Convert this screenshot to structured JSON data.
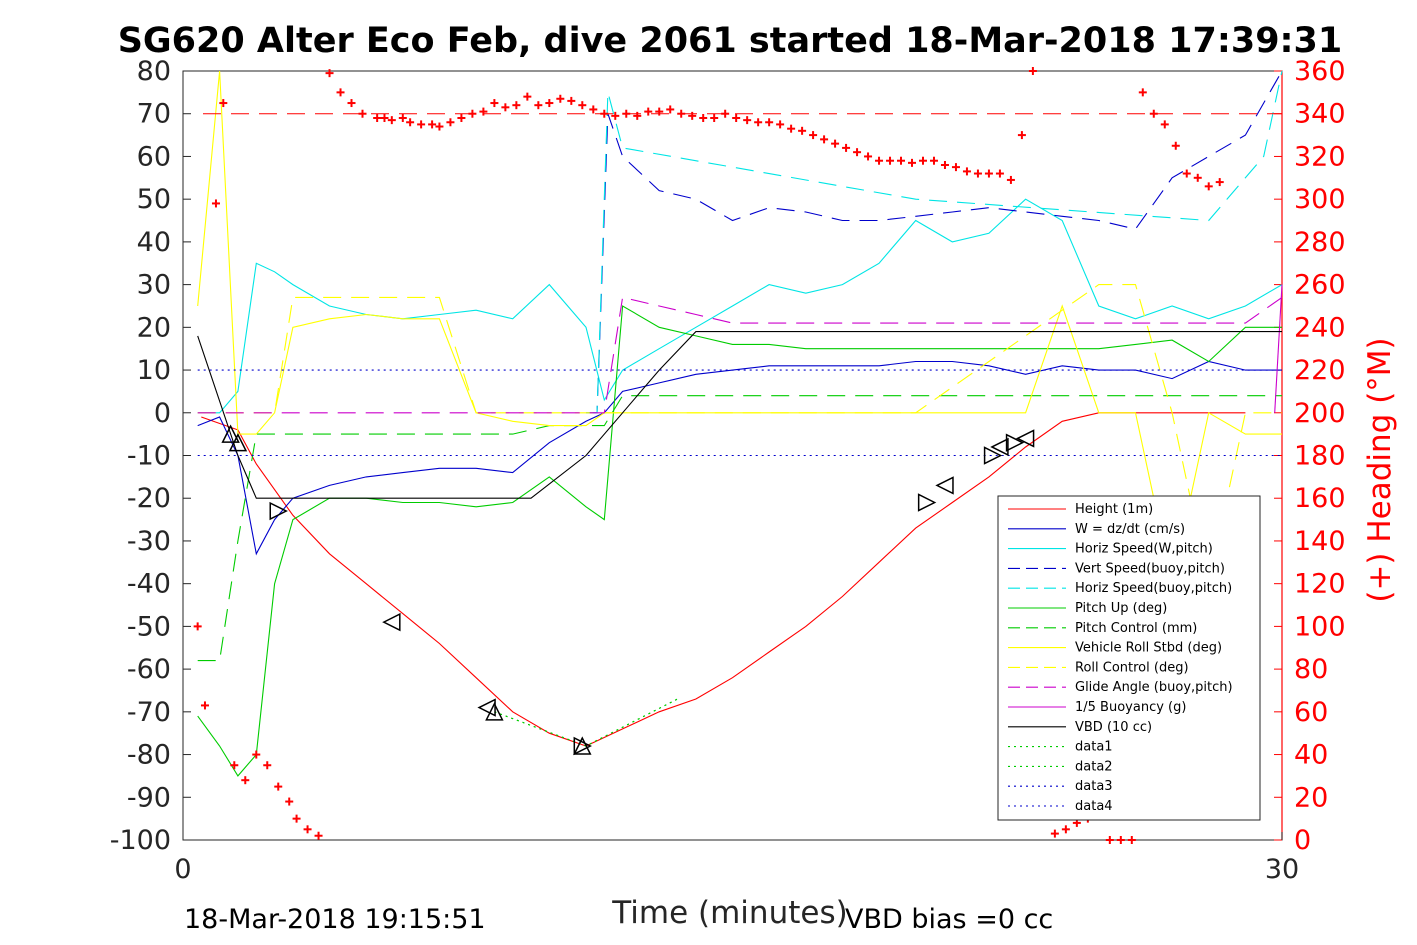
{
  "title": "SG620 Alter Eco Feb, dive 2061 started 18-Mar-2018 17:39:31",
  "footer_left": "18-Mar-2018 19:15:51",
  "footer_right": "VBD bias =0 cc",
  "chart_data": {
    "type": "line",
    "title": "SG620 Alter Eco Feb, dive 2061 started 18-Mar-2018 17:39:31",
    "xlabel": "Time (minutes)",
    "ylabel": "",
    "ylabel_right": "(+) Heading (°M)",
    "xlim": [
      0,
      30
    ],
    "ylim": [
      -100,
      80
    ],
    "ylim_right": [
      0,
      360
    ],
    "x_ticks": [
      "0",
      "30"
    ],
    "y_ticks": [
      "80",
      "70",
      "60",
      "50",
      "40",
      "30",
      "20",
      "10",
      "0",
      "-10",
      "-20",
      "-30",
      "-40",
      "-50",
      "-60",
      "-70",
      "-80",
      "-90",
      "-100"
    ],
    "y_right_ticks": [
      "360",
      "340",
      "320",
      "300",
      "280",
      "260",
      "240",
      "220",
      "200",
      "180",
      "160",
      "140",
      "120",
      "100",
      "80",
      "60",
      "40",
      "20",
      "0"
    ],
    "legend_position": "bottom-right",
    "series": [
      {
        "name": "Height (1m)",
        "color": "#ff0000",
        "style": "solid",
        "x": [
          0.5,
          1.5,
          2.0,
          3.0,
          4.0,
          5.0,
          6.0,
          7.0,
          8.0,
          9.0,
          10.0,
          11.0,
          12.0,
          13.0,
          14.0,
          15.0,
          16.0,
          17.0,
          18.0,
          19.0,
          20.0,
          21.0,
          22.0,
          23.0,
          24.0,
          25.0,
          26.0,
          27.0,
          28.0,
          29.0
        ],
        "y": [
          -1,
          -4,
          -12,
          -24,
          -33,
          -40,
          -47,
          -54,
          -62,
          -70,
          -75,
          -78,
          -74,
          -70,
          -67,
          -62,
          -56,
          -50,
          -43,
          -35,
          -27,
          -21,
          -15,
          -8,
          -2,
          0,
          0,
          0,
          0,
          0
        ]
      },
      {
        "name": "W = dz/dt (cm/s)",
        "color": "#0000cc",
        "style": "solid",
        "x": [
          0.4,
          1.0,
          1.5,
          2.0,
          2.5,
          3.0,
          4.0,
          5.0,
          6.0,
          7.0,
          8.0,
          9.0,
          10.0,
          11.0,
          11.5,
          12.0,
          13.0,
          14.0,
          15.0,
          16.0,
          17.0,
          18.0,
          19.0,
          20.0,
          21.0,
          22.0,
          23.0,
          24.0,
          25.0,
          26.0,
          27.0,
          28.0,
          29.0,
          30.0
        ],
        "y": [
          -3,
          -1,
          -10,
          -33,
          -25,
          -20,
          -17,
          -15,
          -14,
          -13,
          -13,
          -14,
          -7,
          -2,
          0,
          5,
          7,
          9,
          10,
          11,
          11,
          11,
          11,
          12,
          12,
          11,
          9,
          11,
          10,
          10,
          8,
          12,
          10,
          10
        ]
      },
      {
        "name": "Horiz Speed(W,pitch)",
        "color": "#00e5e5",
        "style": "solid",
        "x": [
          0.4,
          1.0,
          1.5,
          2.0,
          2.5,
          3.0,
          4.0,
          5.0,
          6.0,
          7.0,
          8.0,
          9.0,
          10.0,
          11.0,
          11.5,
          12.0,
          13.0,
          14.0,
          15.0,
          16.0,
          17.0,
          18.0,
          19.0,
          20.0,
          21.0,
          22.0,
          23.0,
          24.0,
          25.0,
          26.0,
          27.0,
          28.0,
          29.0,
          30.0
        ],
        "y": [
          0,
          0,
          5,
          35,
          33,
          30,
          25,
          23,
          22,
          23,
          24,
          22,
          30,
          20,
          3,
          10,
          15,
          20,
          25,
          30,
          28,
          30,
          35,
          45,
          40,
          42,
          50,
          45,
          25,
          22,
          25,
          22,
          25,
          30
        ]
      },
      {
        "name": "Vert Speed(buoy,pitch)",
        "color": "#0000cc",
        "style": "dashed",
        "x": [
          11.0,
          11.3,
          11.6,
          12.0,
          13.0,
          14.0,
          15.0,
          16.0,
          17.0,
          18.0,
          19.0,
          20.0,
          21.0,
          22.0,
          23.0,
          24.0,
          25.0,
          26.0,
          27.0,
          28.0,
          29.0,
          30.0
        ],
        "y": [
          0,
          0,
          70,
          60,
          52,
          50,
          45,
          48,
          47,
          45,
          45,
          46,
          47,
          48,
          47,
          46,
          45,
          43,
          55,
          60,
          65,
          80
        ]
      },
      {
        "name": "Horiz Speed(buoy,pitch)",
        "color": "#00e5e5",
        "style": "dashed",
        "x": [
          11.0,
          11.3,
          11.6,
          12.0,
          20.0,
          28.0,
          29.5,
          30.0
        ],
        "y": [
          0,
          0,
          75,
          62,
          50,
          45,
          60,
          80
        ]
      },
      {
        "name": "Pitch Up (deg)",
        "color": "#00cc00",
        "style": "solid",
        "x": [
          0.4,
          1.0,
          1.5,
          2.0,
          2.5,
          3.0,
          4.0,
          5.0,
          6.0,
          7.0,
          8.0,
          9.0,
          10.0,
          11.0,
          11.5,
          12.0,
          13.0,
          14.0,
          15.0,
          16.0,
          17.0,
          18.0,
          19.0,
          20.0,
          21.0,
          22.0,
          23.0,
          24.0,
          25.0,
          26.0,
          27.0,
          28.0,
          29.0,
          30.0
        ],
        "y": [
          -71,
          -78,
          -85,
          -80,
          -40,
          -25,
          -20,
          -20,
          -21,
          -21,
          -22,
          -21,
          -15,
          -22,
          -25,
          25,
          20,
          18,
          16,
          16,
          15,
          15,
          15,
          15,
          15,
          15,
          15,
          15,
          15,
          16,
          17,
          12,
          20,
          20
        ]
      },
      {
        "name": "Pitch Control (mm)",
        "color": "#00cc00",
        "style": "dashed",
        "x": [
          0.4,
          1.0,
          1.5,
          2.0,
          2.5,
          3.0,
          4.0,
          5.0,
          6.0,
          7.0,
          8.0,
          9.0,
          10.0,
          11.0,
          11.5,
          12.0,
          13.0,
          14.0,
          15.0,
          16.0,
          17.0,
          18.0,
          19.0,
          20.0,
          21.0,
          22.0,
          23.0,
          24.0,
          25.0,
          26.0,
          27.0,
          28.0,
          29.0,
          30.0
        ],
        "y": [
          -58,
          -58,
          -30,
          -5,
          -5,
          -5,
          -5,
          -5,
          -5,
          -5,
          -5,
          -5,
          -3,
          -3,
          -3,
          4,
          4,
          4,
          4,
          4,
          4,
          4,
          4,
          4,
          4,
          4,
          4,
          4,
          4,
          4,
          4,
          4,
          4,
          4
        ]
      },
      {
        "name": "Vehicle Roll Stbd (deg)",
        "color": "#ffff00",
        "style": "solid",
        "x": [
          0.4,
          1.0,
          1.5,
          2.0,
          2.5,
          3.0,
          4.0,
          5.0,
          6.0,
          7.0,
          8.0,
          9.0,
          10.0,
          11.0,
          11.5,
          12.0,
          13.0,
          14.0,
          15.0,
          16.0,
          17.0,
          18.0,
          19.0,
          20.0,
          21.0,
          22.0,
          23.0,
          24.0,
          25.0,
          26.0,
          27.0,
          28.0,
          29.0,
          30.0
        ],
        "y": [
          25,
          80,
          -5,
          -5,
          0,
          20,
          22,
          23,
          22,
          22,
          0,
          -2,
          -3,
          -3,
          0,
          0,
          0,
          0,
          0,
          0,
          0,
          0,
          0,
          0,
          0,
          0,
          0,
          25,
          0,
          0,
          -40,
          0,
          -5,
          -5
        ]
      },
      {
        "name": "Roll Control (deg)",
        "color": "#ffff00",
        "style": "dashed",
        "x": [
          0.4,
          2.0,
          2.5,
          3.0,
          4.0,
          5.0,
          6.0,
          7.0,
          8.0,
          9.0,
          10.0,
          11.0,
          12.0,
          20.0,
          25.0,
          26.0,
          27.0,
          28.0,
          29.0,
          30.0
        ],
        "y": [
          0,
          0,
          0,
          27,
          27,
          27,
          27,
          27,
          0,
          0,
          0,
          0,
          0,
          0,
          30,
          30,
          0,
          -40,
          0,
          0
        ]
      },
      {
        "name": "Glide Angle (buoy,pitch)",
        "color": "#cc00cc",
        "style": "dashed",
        "x": [
          0.4,
          11.0,
          11.5,
          12.0,
          13.0,
          14.0,
          15.0,
          16.0,
          17.0,
          18.0,
          19.0,
          20.0,
          21.0,
          22.0,
          23.0,
          24.0,
          25.0,
          26.0,
          27.0,
          28.0,
          29.0,
          30.0
        ],
        "y": [
          0,
          0,
          0,
          27,
          25,
          23,
          21,
          21,
          21,
          21,
          21,
          21,
          21,
          21,
          21,
          21,
          21,
          21,
          21,
          21,
          21,
          27
        ]
      },
      {
        "name": "1/5 Buoyancy (g)",
        "color": "#cc00cc",
        "style": "solid",
        "x": [
          29.8,
          30.0
        ],
        "y": [
          0,
          30
        ]
      },
      {
        "name": "VBD (10 cc)",
        "color": "#000000",
        "style": "solid",
        "x": [
          0.4,
          1.5,
          2.0,
          9.5,
          11.0,
          12.0,
          13.0,
          14.0,
          30.0
        ],
        "y": [
          18,
          -10,
          -20,
          -20,
          -10,
          0,
          10,
          19,
          19
        ]
      },
      {
        "name": "data1",
        "color": "#00cc00",
        "style": "dotted",
        "x": [
          8.5,
          11.0,
          13.5
        ],
        "y": [
          -70,
          -78,
          -67
        ]
      },
      {
        "name": "data2",
        "color": "#00cc00",
        "style": "dotted",
        "x": [
          8.5,
          11.0,
          13.5
        ],
        "y": [
          -70,
          -78,
          -67
        ]
      },
      {
        "name": "data3",
        "color": "#0000cc",
        "style": "dotted",
        "x": [
          0.4,
          30.0
        ],
        "y": [
          10,
          10
        ]
      },
      {
        "name": "data4",
        "color": "#0000cc",
        "style": "dotted",
        "x": [
          0.4,
          30.0
        ],
        "y": [
          -10,
          -10
        ]
      }
    ],
    "heading_points": {
      "name": "Heading",
      "color": "#ff0000",
      "marker": "+",
      "x": [
        0.4,
        0.6,
        0.9,
        1.1,
        1.4,
        1.7,
        2.0,
        2.3,
        2.6,
        2.9,
        3.1,
        3.4,
        3.7,
        4.0,
        4.3,
        4.6,
        4.9,
        5.3,
        5.5,
        5.7,
        6.0,
        6.2,
        6.5,
        6.8,
        7.0,
        7.3,
        7.6,
        7.9,
        8.2,
        8.5,
        8.8,
        9.1,
        9.4,
        9.7,
        10.0,
        10.3,
        10.6,
        10.9,
        11.2,
        11.5,
        11.8,
        12.1,
        12.4,
        12.7,
        13.0,
        13.3,
        13.6,
        13.9,
        14.2,
        14.5,
        14.8,
        15.1,
        15.4,
        15.7,
        16.0,
        16.3,
        16.6,
        16.9,
        17.2,
        17.5,
        17.8,
        18.1,
        18.4,
        18.7,
        19.0,
        19.3,
        19.6,
        19.9,
        20.2,
        20.5,
        20.8,
        21.1,
        21.4,
        21.7,
        22.0,
        22.3,
        22.6,
        22.9,
        23.2,
        23.5,
        23.8,
        24.1,
        24.4,
        24.7,
        25.0,
        25.3,
        25.6,
        25.9,
        26.2,
        26.5,
        26.8,
        27.1,
        27.4,
        27.7,
        28.0,
        28.3
      ],
      "heading": [
        100,
        63,
        298,
        345,
        35,
        28,
        40,
        35,
        25,
        18,
        10,
        5,
        2,
        359,
        350,
        345,
        340,
        338,
        338,
        337,
        338,
        336,
        335,
        335,
        334,
        336,
        338,
        340,
        341,
        345,
        343,
        344,
        348,
        344,
        345,
        347,
        346,
        344,
        342,
        340,
        339,
        340,
        339,
        341,
        341,
        342,
        340,
        339,
        338,
        338,
        340,
        338,
        337,
        336,
        336,
        335,
        333,
        332,
        330,
        328,
        326,
        324,
        322,
        320,
        318,
        318,
        318,
        317,
        318,
        318,
        316,
        315,
        313,
        312,
        312,
        312,
        309,
        330,
        360,
        40,
        3,
        5,
        8,
        10,
        12,
        0,
        0,
        0,
        350,
        340,
        335,
        325,
        312,
        310,
        306,
        308
      ]
    },
    "triangle_markers": [
      {
        "x": 1.3,
        "y": -5,
        "dir": "up"
      },
      {
        "x": 1.5,
        "y": -7,
        "dir": "up"
      },
      {
        "x": 2.6,
        "y": -23,
        "dir": "right"
      },
      {
        "x": 5.7,
        "y": -49,
        "dir": "left"
      },
      {
        "x": 8.3,
        "y": -69,
        "dir": "left"
      },
      {
        "x": 8.5,
        "y": -70,
        "dir": "up"
      },
      {
        "x": 10.9,
        "y": -78,
        "dir": "up"
      },
      {
        "x": 10.9,
        "y": -78,
        "dir": "right"
      },
      {
        "x": 20.3,
        "y": -21,
        "dir": "right"
      },
      {
        "x": 20.8,
        "y": -17,
        "dir": "left"
      },
      {
        "x": 22.1,
        "y": -10,
        "dir": "right"
      },
      {
        "x": 22.3,
        "y": -8,
        "dir": "left"
      },
      {
        "x": 22.7,
        "y": -7,
        "dir": "right"
      },
      {
        "x": 23.0,
        "y": -6,
        "dir": "left"
      }
    ]
  }
}
